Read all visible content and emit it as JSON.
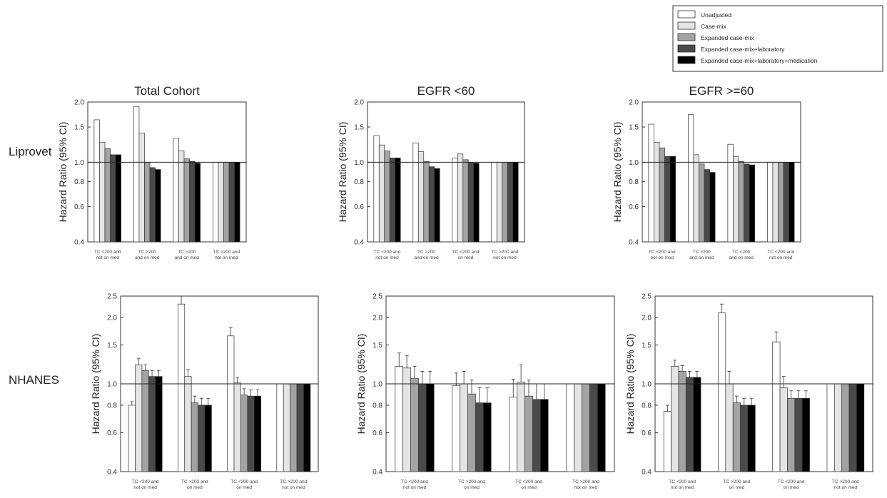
{
  "row_labels": [
    "Liprovet",
    "NHANES"
  ],
  "chart_data": [
    {
      "type": "bar",
      "title": "Total Cohort",
      "ylabel": "Hazard Ratio (95% CI)",
      "ylim": [
        0.4,
        2.0
      ],
      "yscale": "log",
      "yticks": [
        "0.4",
        "0.6",
        "0.8",
        "1.0",
        "1.5",
        "2.0"
      ],
      "reference_line": 1.0,
      "categories": [
        [
          "TC <200 and",
          "not on med"
        ],
        [
          "TC >200",
          "and on med"
        ],
        [
          "TC >200",
          "and on med"
        ],
        [
          "TC >200 and",
          "not on med"
        ]
      ],
      "series": [
        {
          "name": "Unadjusted",
          "values": [
            1.63,
            1.9,
            1.32,
            1.0
          ]
        },
        {
          "name": "Case-mix",
          "values": [
            1.26,
            1.4,
            1.14,
            1.0
          ]
        },
        {
          "name": "Expanded case-mix",
          "values": [
            1.17,
            1.0,
            1.04,
            1.0
          ]
        },
        {
          "name": "Expanded case-mix+laboratory",
          "values": [
            1.09,
            0.94,
            1.01,
            1.0
          ]
        },
        {
          "name": "Expanded case-mix+laboratory+medication",
          "values": [
            1.09,
            0.92,
            0.99,
            1.0
          ]
        }
      ]
    },
    {
      "type": "bar",
      "title": "EGFR <60",
      "ylabel": "Hazard Ratio (95% CI)",
      "ylim": [
        0.4,
        2.0
      ],
      "yscale": "log",
      "yticks": [
        "0.4",
        "0.6",
        "0.8",
        "1.0",
        "1.5",
        "2.0"
      ],
      "reference_line": 1.0,
      "categories": [
        [
          "TC <200 and",
          "not on med"
        ],
        [
          "TC >200",
          "and on med"
        ],
        [
          "TC <200 and",
          "on med"
        ],
        [
          "TC >200 and",
          "not on med"
        ]
      ],
      "series": [
        {
          "name": "Unadjusted",
          "values": [
            1.36,
            1.25,
            1.05,
            1.0
          ]
        },
        {
          "name": "Case-mix",
          "values": [
            1.22,
            1.13,
            1.1,
            1.0
          ]
        },
        {
          "name": "Expanded case-mix",
          "values": [
            1.14,
            1.01,
            1.03,
            1.0
          ]
        },
        {
          "name": "Expanded case-mix+laboratory",
          "values": [
            1.05,
            0.95,
            1.0,
            1.0
          ]
        },
        {
          "name": "Expanded case-mix+laboratory+medication",
          "values": [
            1.05,
            0.93,
            0.99,
            1.0
          ]
        }
      ]
    },
    {
      "type": "bar",
      "title": "EGFR >=60",
      "ylabel": "Hazard Ratio (95% CI)",
      "ylim": [
        0.4,
        2.0
      ],
      "yscale": "log",
      "yticks": [
        "0.4",
        "0.6",
        "0.8",
        "1.0",
        "1.5",
        "2.0"
      ],
      "reference_line": 1.0,
      "categories": [
        [
          "TC <200 and",
          "not on med"
        ],
        [
          "TC >200",
          "and on med"
        ],
        [
          "TC <200",
          "and on med"
        ],
        [
          "TC <200 and",
          "not on med"
        ]
      ],
      "series": [
        {
          "name": "Unadjusted",
          "values": [
            1.55,
            1.73,
            1.23,
            1.0
          ]
        },
        {
          "name": "Case-mix",
          "values": [
            1.26,
            1.09,
            1.07,
            1.0
          ]
        },
        {
          "name": "Expanded case-mix",
          "values": [
            1.18,
            0.98,
            1.01,
            1.0
          ]
        },
        {
          "name": "Expanded case-mix+laboratory",
          "values": [
            1.07,
            0.92,
            0.98,
            1.0
          ]
        },
        {
          "name": "Expanded case-mix+laboratory+medication",
          "values": [
            1.07,
            0.89,
            0.97,
            1.0
          ]
        }
      ]
    },
    {
      "type": "bar",
      "title": "",
      "ylabel": "Hazard Ratio (95% CI)",
      "ylim": [
        0.4,
        2.5
      ],
      "yscale": "log",
      "yticks": [
        "0.4",
        "0.6",
        "0.8",
        "1.0",
        "1.5",
        "2.0",
        "2.5"
      ],
      "reference_line": 1.0,
      "categories": [
        [
          "TC <200 and",
          "not on med"
        ],
        [
          "TC >200 and",
          "on med"
        ],
        [
          "TC <200 and",
          "on med"
        ],
        [
          "TC >200 and",
          "not on med"
        ]
      ],
      "series": [
        {
          "name": "Unadjusted",
          "values": [
            0.8,
            2.3,
            1.65,
            1.0
          ],
          "ci_high": [
            0.83,
            2.5,
            1.8,
            1.0
          ]
        },
        {
          "name": "Case-mix",
          "values": [
            1.22,
            1.08,
            1.01,
            1.0
          ],
          "ci_high": [
            1.3,
            1.16,
            1.07,
            1.0
          ]
        },
        {
          "name": "Expanded case-mix",
          "values": [
            1.15,
            0.82,
            0.89,
            1.0
          ],
          "ci_high": [
            1.22,
            0.88,
            0.95,
            1.0
          ]
        },
        {
          "name": "Expanded case-mix+laboratory",
          "values": [
            1.08,
            0.8,
            0.88,
            1.0
          ],
          "ci_high": [
            1.15,
            0.86,
            0.94,
            1.0
          ]
        },
        {
          "name": "Expanded case-mix+laboratory+medication",
          "values": [
            1.08,
            0.8,
            0.88,
            1.0
          ],
          "ci_high": [
            1.15,
            0.86,
            0.94,
            1.0
          ]
        }
      ]
    },
    {
      "type": "bar",
      "title": "",
      "ylabel": "Hazard Ratio (95% CI)",
      "ylim": [
        0.4,
        2.5
      ],
      "yscale": "log",
      "yticks": [
        "0.4",
        "0.6",
        "0.8",
        "1.0",
        "1.5",
        "2.0",
        "2.5"
      ],
      "reference_line": 1.0,
      "categories": [
        [
          "TC <200 and",
          "not on med"
        ],
        [
          "TC >200 and",
          "on med"
        ],
        [
          "TC <200 and",
          "on med"
        ],
        [
          "TC >200 and",
          "not on med"
        ]
      ],
      "series": [
        {
          "name": "Unadjusted",
          "values": [
            1.2,
            0.98,
            0.87,
            1.0
          ],
          "ci_high": [
            1.38,
            1.12,
            1.05,
            1.0
          ]
        },
        {
          "name": "Case-mix",
          "values": [
            1.18,
            1.0,
            1.02,
            1.0
          ],
          "ci_high": [
            1.34,
            1.14,
            1.22,
            1.0
          ]
        },
        {
          "name": "Expanded case-mix",
          "values": [
            1.06,
            0.9,
            0.88,
            1.0
          ],
          "ci_high": [
            1.2,
            1.04,
            1.04,
            1.0
          ]
        },
        {
          "name": "Expanded case-mix+laboratory",
          "values": [
            1.0,
            0.82,
            0.85,
            1.0
          ],
          "ci_high": [
            1.14,
            0.96,
            1.0,
            1.0
          ]
        },
        {
          "name": "Expanded case-mix+laboratory+medication",
          "values": [
            1.0,
            0.82,
            0.85,
            1.0
          ],
          "ci_high": [
            1.14,
            0.96,
            1.0,
            1.0
          ]
        }
      ]
    },
    {
      "type": "bar",
      "title": "",
      "ylabel": "Hazard Ratio (95% CI)",
      "ylim": [
        0.4,
        2.5
      ],
      "yscale": "log",
      "yticks": [
        "0.4",
        "0.6",
        "0.8",
        "1.0",
        "1.5",
        "2.0",
        "2.5"
      ],
      "reference_line": 1.0,
      "categories": [
        [
          "TC <200 and",
          "not on med"
        ],
        [
          "TC >200 and",
          "on med"
        ],
        [
          "TC <200 and",
          "on med"
        ],
        [
          "TC >200 and",
          "not on med"
        ]
      ],
      "series": [
        {
          "name": "Unadjusted",
          "values": [
            0.75,
            2.1,
            1.55,
            1.0
          ],
          "ci_high": [
            0.8,
            2.3,
            1.72,
            1.0
          ]
        },
        {
          "name": "Case-mix",
          "values": [
            1.2,
            1.0,
            0.96,
            1.0
          ],
          "ci_high": [
            1.28,
            1.14,
            1.08,
            1.0
          ]
        },
        {
          "name": "Expanded case-mix",
          "values": [
            1.14,
            0.82,
            0.86,
            1.0
          ],
          "ci_high": [
            1.21,
            0.88,
            0.93,
            1.0
          ]
        },
        {
          "name": "Expanded case-mix+laboratory",
          "values": [
            1.07,
            0.8,
            0.86,
            1.0
          ],
          "ci_high": [
            1.14,
            0.86,
            0.93,
            1.0
          ]
        },
        {
          "name": "Expanded case-mix+laboratory+medication",
          "values": [
            1.07,
            0.8,
            0.86,
            1.0
          ],
          "ci_high": [
            1.14,
            0.86,
            0.93,
            1.0
          ]
        }
      ]
    }
  ],
  "legend": {
    "placement": "top-right",
    "entries": [
      {
        "label": "Unadjusted",
        "color": "#ffffff"
      },
      {
        "label": "Case-mix",
        "color": "#e4e4e4"
      },
      {
        "label": "Expanded case-mix",
        "color": "#a3a3a3"
      },
      {
        "label": "Expanded case-mix+laboratory",
        "color": "#4a4a4a"
      },
      {
        "label": "Expanded case-mix+laboratory+medication",
        "color": "#000000"
      }
    ]
  }
}
